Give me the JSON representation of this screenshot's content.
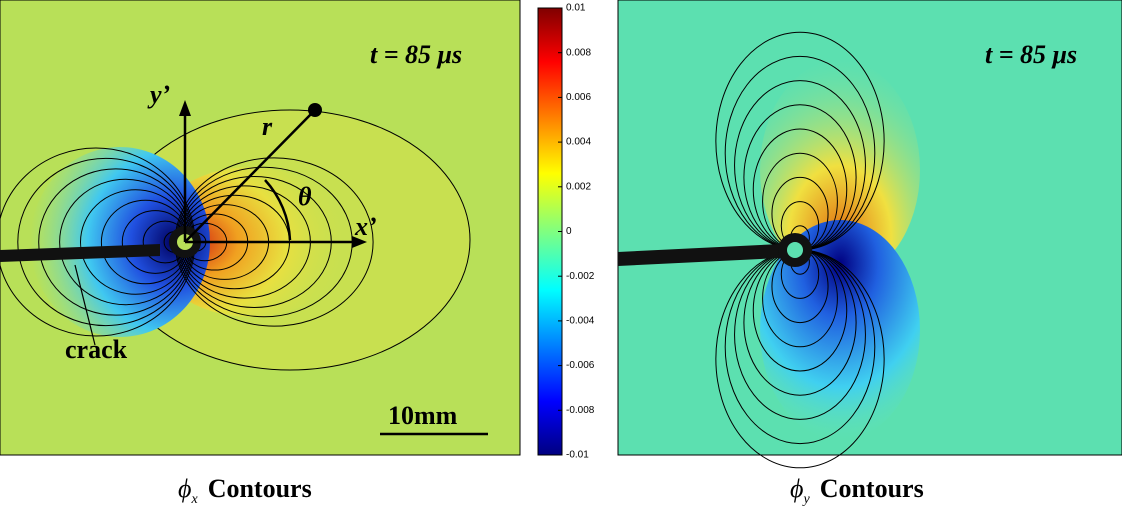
{
  "panels": [
    {
      "time": "t = 85 μs",
      "symbol": "ϕ",
      "subscript": "x",
      "caption": "Contours",
      "annotations": {
        "y_axis": "y’",
        "r": "r",
        "theta": "θ",
        "x_axis": "x’",
        "crack": "crack",
        "scale": "10mm"
      }
    },
    {
      "time": "t = 85 μs",
      "symbol": "ϕ",
      "subscript": "y",
      "caption": "Contours"
    }
  ],
  "colorbar": {
    "lim": [
      -0.01,
      0.01
    ],
    "ticks": [
      0.01,
      0.008,
      0.006,
      0.004,
      0.002,
      0,
      -0.002,
      -0.004,
      -0.006,
      -0.008,
      -0.01
    ]
  }
}
